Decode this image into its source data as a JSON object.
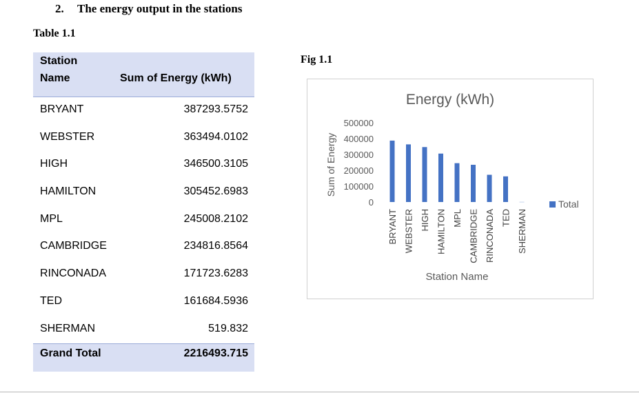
{
  "heading": {
    "number": "2.",
    "text": "The energy output in the stations"
  },
  "table_caption": "Table 1.1",
  "fig_caption": "Fig 1.1",
  "table": {
    "col1_header_line1": "Station",
    "col1_header_line2": "Name",
    "col2_header": "Sum of Energy (kWh)",
    "rows": [
      {
        "name": "BRYANT",
        "value": "387293.5752"
      },
      {
        "name": "WEBSTER",
        "value": "363494.0102"
      },
      {
        "name": "HIGH",
        "value": "346500.3105"
      },
      {
        "name": "HAMILTON",
        "value": "305452.6983"
      },
      {
        "name": "MPL",
        "value": "245008.2102"
      },
      {
        "name": "CAMBRIDGE",
        "value": "234816.8564"
      },
      {
        "name": "RINCONADA",
        "value": "171723.6283"
      },
      {
        "name": "TED",
        "value": "161684.5936"
      },
      {
        "name": "SHERMAN",
        "value": "519.832"
      }
    ],
    "total_label": "Grand Total",
    "total_value": "2216493.715"
  },
  "chart_data": {
    "type": "bar",
    "title": "Energy (kWh)",
    "xlabel": "Station Name",
    "ylabel": "Sum of Energy",
    "categories": [
      "BRYANT",
      "WEBSTER",
      "HIGH",
      "HAMILTON",
      "MPL",
      "CAMBRIDGE",
      "RINCONADA",
      "TED",
      "SHERMAN"
    ],
    "series": [
      {
        "name": "Total",
        "values": [
          387293.5752,
          363494.0102,
          346500.3105,
          305452.6983,
          245008.2102,
          234816.8564,
          171723.6283,
          161684.5936,
          519.832
        ]
      }
    ],
    "yticks": [
      "0",
      "100000",
      "200000",
      "300000",
      "400000",
      "500000"
    ],
    "ylim": [
      0,
      500000
    ],
    "grid": false,
    "legend_position": "right",
    "bar_color": "#4472c4"
  }
}
